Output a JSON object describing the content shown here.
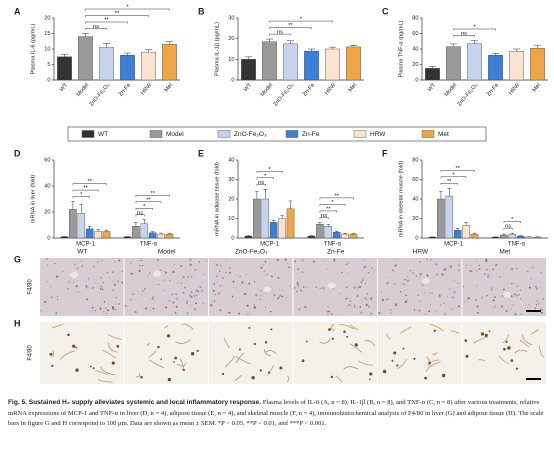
{
  "chart_data": [
    {
      "panel": "A",
      "type": "bar",
      "y_label": "Plasma IL-6 (pg/mL)",
      "categories": [
        "WT",
        "Model",
        "ZnO-Fe₂O₃",
        "Zn-Fe",
        "HRW",
        "Met"
      ],
      "values": [
        7.5,
        14,
        10.5,
        8,
        9,
        11.5
      ],
      "errors": [
        0.8,
        1,
        1.3,
        0.7,
        0.8,
        0.9
      ],
      "colors": [
        "#333333",
        "#9a9a9a",
        "#c6d4ef",
        "#3b7fd8",
        "#fbe4cf",
        "#f0a646"
      ],
      "ylim": [
        0,
        20
      ],
      "yticks": [
        0,
        5,
        10,
        15,
        20
      ],
      "annotations": [
        {
          "label": "ns",
          "between": [
            "Model",
            "ZnO-Fe₂O₃"
          ]
        },
        {
          "label": "**",
          "between": [
            "Model",
            "Zn-Fe"
          ]
        },
        {
          "label": "**",
          "between": [
            "Model",
            "HRW"
          ]
        },
        {
          "label": "*",
          "between": [
            "Model",
            "Met"
          ]
        }
      ]
    },
    {
      "panel": "B",
      "type": "bar",
      "y_label": "Plasma IL-1β (pg/mL)",
      "categories": [
        "WT",
        "Model",
        "ZnO-Fe₂O₃",
        "Zn-Fe",
        "HRW",
        "Met"
      ],
      "values": [
        10,
        18.5,
        17.5,
        14,
        15,
        16
      ],
      "errors": [
        1.2,
        1.3,
        1.5,
        1,
        0.9,
        0.8
      ],
      "colors": [
        "#333333",
        "#9a9a9a",
        "#c6d4ef",
        "#3b7fd8",
        "#fbe4cf",
        "#f0a646"
      ],
      "ylim": [
        0,
        30
      ],
      "yticks": [
        0,
        10,
        20,
        30
      ],
      "annotations": [
        {
          "label": "ns",
          "between": [
            "Model",
            "ZnO-Fe₂O₃"
          ]
        },
        {
          "label": "**",
          "between": [
            "Model",
            "Zn-Fe"
          ]
        },
        {
          "label": "*",
          "between": [
            "Model",
            "HRW"
          ]
        }
      ]
    },
    {
      "panel": "C",
      "type": "bar",
      "y_label": "Plasma TNF-α (pg/mL)",
      "categories": [
        "WT",
        "Model",
        "ZnO-Fe₂O₃",
        "Zn-Fe",
        "HRW",
        "Met"
      ],
      "values": [
        15,
        43,
        47,
        32,
        37,
        41
      ],
      "errors": [
        2.5,
        3.5,
        4,
        2.5,
        3,
        4
      ],
      "colors": [
        "#333333",
        "#9a9a9a",
        "#c6d4ef",
        "#3b7fd8",
        "#fbe4cf",
        "#f0a646"
      ],
      "ylim": [
        0,
        80
      ],
      "yticks": [
        0,
        20,
        40,
        60,
        80
      ],
      "annotations": [
        {
          "label": "ns",
          "between": [
            "Model",
            "ZnO-Fe₂O₃"
          ]
        },
        {
          "label": "*",
          "between": [
            "Model",
            "Zn-Fe"
          ]
        }
      ]
    },
    {
      "panel": "D",
      "type": "grouped_bar",
      "y_label": "mRNA in liver (fold)",
      "categories": [
        "MCP-1",
        "TNF-α"
      ],
      "series": [
        {
          "name": "WT",
          "color": "#333333",
          "values": [
            1,
            1
          ],
          "errors": [
            0.2,
            0.2
          ]
        },
        {
          "name": "Model",
          "color": "#9a9a9a",
          "values": [
            22,
            9
          ],
          "errors": [
            6,
            3
          ]
        },
        {
          "name": "ZnO-Fe₂O₃",
          "color": "#c6d4ef",
          "values": [
            19,
            11
          ],
          "errors": [
            7,
            3
          ]
        },
        {
          "name": "Zn-Fe",
          "color": "#3b7fd8",
          "values": [
            7,
            4
          ],
          "errors": [
            2,
            1
          ]
        },
        {
          "name": "HRW",
          "color": "#fbe4cf",
          "values": [
            5,
            3
          ],
          "errors": [
            1.5,
            0.8
          ]
        },
        {
          "name": "Met",
          "color": "#f0a646",
          "values": [
            5,
            3
          ],
          "errors": [
            1,
            0.6
          ]
        }
      ],
      "ylim": [
        0,
        60
      ],
      "yticks": [
        0,
        20,
        40,
        60
      ],
      "annotations": [
        {
          "group": "MCP-1",
          "label": "*",
          "between": [
            "Model",
            "Zn-Fe"
          ]
        },
        {
          "group": "MCP-1",
          "label": "**",
          "between": [
            "Model",
            "HRW"
          ]
        },
        {
          "group": "MCP-1",
          "label": "**",
          "between": [
            "Model",
            "Met"
          ]
        },
        {
          "group": "TNF-α",
          "label": "ns",
          "between": [
            "Model",
            "ZnO-Fe₂O₃"
          ]
        },
        {
          "group": "TNF-α",
          "label": "*",
          "between": [
            "Model",
            "Zn-Fe"
          ]
        },
        {
          "group": "TNF-α",
          "label": "**",
          "between": [
            "Model",
            "HRW"
          ]
        },
        {
          "group": "TNF-α",
          "label": "**",
          "between": [
            "Model",
            "Met"
          ]
        }
      ]
    },
    {
      "panel": "E",
      "type": "grouped_bar",
      "y_label": "mRNA in adipose tissue (fold)",
      "categories": [
        "MCP-1",
        "TNF-α"
      ],
      "series": [
        {
          "name": "WT",
          "color": "#333333",
          "values": [
            1,
            1
          ],
          "errors": [
            0.2,
            0.2
          ]
        },
        {
          "name": "Model",
          "color": "#9a9a9a",
          "values": [
            20,
            7
          ],
          "errors": [
            4,
            1
          ]
        },
        {
          "name": "ZnO-Fe₂O₃",
          "color": "#c6d4ef",
          "values": [
            20,
            6
          ],
          "errors": [
            5,
            1
          ]
        },
        {
          "name": "Zn-Fe",
          "color": "#3b7fd8",
          "values": [
            8,
            3
          ],
          "errors": [
            1,
            0.5
          ]
        },
        {
          "name": "HRW",
          "color": "#fbe4cf",
          "values": [
            10,
            2
          ],
          "errors": [
            1.5,
            0.4
          ]
        },
        {
          "name": "Met",
          "color": "#f0a646",
          "values": [
            15,
            2
          ],
          "errors": [
            4,
            0.4
          ]
        }
      ],
      "ylim": [
        0,
        40
      ],
      "yticks": [
        0,
        10,
        20,
        30,
        40
      ],
      "annotations": [
        {
          "group": "MCP-1",
          "label": "ns",
          "between": [
            "Model",
            "ZnO-Fe₂O₃"
          ]
        },
        {
          "group": "MCP-1",
          "label": "*",
          "between": [
            "Model",
            "Zn-Fe"
          ]
        },
        {
          "group": "MCP-1",
          "label": "*",
          "between": [
            "Model",
            "HRW"
          ]
        },
        {
          "group": "TNF-α",
          "label": "ns",
          "between": [
            "Model",
            "ZnO-Fe₂O₃"
          ]
        },
        {
          "group": "TNF-α",
          "label": "**",
          "between": [
            "Model",
            "Zn-Fe"
          ]
        },
        {
          "group": "TNF-α",
          "label": "*",
          "between": [
            "Model",
            "HRW"
          ]
        },
        {
          "group": "TNF-α",
          "label": "**",
          "between": [
            "Model",
            "Met"
          ]
        }
      ]
    },
    {
      "panel": "F",
      "type": "grouped_bar",
      "y_label": "mRNA in skeletal muscle (fold)",
      "categories": [
        "MCP-1",
        "TNF-α"
      ],
      "series": [
        {
          "name": "WT",
          "color": "#333333",
          "values": [
            1,
            1
          ],
          "errors": [
            0.2,
            0.2
          ]
        },
        {
          "name": "Model",
          "color": "#9a9a9a",
          "values": [
            40,
            3
          ],
          "errors": [
            8,
            1
          ]
        },
        {
          "name": "ZnO-Fe₂O₃",
          "color": "#c6d4ef",
          "values": [
            43,
            4
          ],
          "errors": [
            8,
            1
          ]
        },
        {
          "name": "Zn-Fe",
          "color": "#3b7fd8",
          "values": [
            8,
            2
          ],
          "errors": [
            2,
            0.5
          ]
        },
        {
          "name": "HRW",
          "color": "#fbe4cf",
          "values": [
            13,
            1
          ],
          "errors": [
            3,
            0.3
          ]
        },
        {
          "name": "Met",
          "color": "#f0a646",
          "values": [
            4,
            1
          ],
          "errors": [
            1,
            0.3
          ]
        }
      ],
      "ylim": [
        0,
        80
      ],
      "yticks": [
        0,
        20,
        40,
        60,
        80
      ],
      "annotations": [
        {
          "group": "MCP-1",
          "label": "**",
          "between": [
            "Model",
            "Zn-Fe"
          ]
        },
        {
          "group": "MCP-1",
          "label": "*",
          "between": [
            "Model",
            "HRW"
          ]
        },
        {
          "group": "MCP-1",
          "label": "**",
          "between": [
            "Model",
            "Met"
          ]
        },
        {
          "group": "TNF-α",
          "label": "ns",
          "between": [
            "Model",
            "ZnO-Fe₂O₃"
          ]
        },
        {
          "group": "TNF-α",
          "label": "*",
          "between": [
            "Model",
            "Zn-Fe"
          ]
        }
      ]
    }
  ],
  "histology": {
    "columns": [
      "WT",
      "Model",
      "ZnO-Fe₂O₃",
      "Zn-Fe",
      "HRW",
      "Met"
    ],
    "rows": [
      {
        "panel": "G",
        "row_label": "F4/80"
      },
      {
        "panel": "H",
        "row_label": "F4/80"
      }
    ]
  },
  "caption": {
    "label": "Fig. 5.",
    "title": "Sustained H₂ supply alleviates systemic and local inflammatory response.",
    "text": "Plasma levels of IL-6 (A, n = 8), IL-1β (B, n = 8), and TNF-α (C, n = 8) after various treatments, relative mRNA expressions of MCP-1 and TNF-α in liver (D, n = 4), adipose tissue (E, n = 4), and skeletal muscle (F, n = 4), immunohistochemical analysis of F4/80 in liver (G) and adipose tissue (H). The scale bars in figure G and H correspond to 100 μm. Data are shown as mean ± SEM. *P < 0.05, **P < 0.01, and ***P < 0.001."
  }
}
